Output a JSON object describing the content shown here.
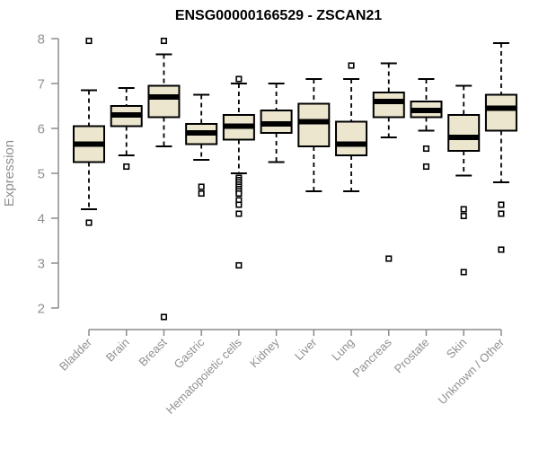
{
  "chart_data": {
    "type": "boxplot",
    "title": "ENSG00000166529 - ZSCAN21",
    "ylabel": "Expression",
    "xlabel": "",
    "ylim": [
      2,
      8
    ],
    "yticks": [
      2,
      3,
      4,
      5,
      6,
      7,
      8
    ],
    "grid": false,
    "legend": "none",
    "categories": [
      "Bladder",
      "Brain",
      "Breast",
      "Gastric",
      "Hematopoietic cells",
      "Kidney",
      "Liver",
      "Lung",
      "Pancreas",
      "Prostate",
      "Skin",
      "Unknown / Other"
    ],
    "boxes": [
      {
        "category": "Bladder",
        "low": 4.2,
        "q1": 5.25,
        "median": 5.65,
        "q3": 6.05,
        "high": 6.85,
        "outliers": [
          7.95,
          3.9
        ]
      },
      {
        "category": "Brain",
        "low": 5.4,
        "q1": 6.05,
        "median": 6.3,
        "q3": 6.5,
        "high": 6.9,
        "outliers": [
          5.15
        ]
      },
      {
        "category": "Breast",
        "low": 5.6,
        "q1": 6.25,
        "median": 6.7,
        "q3": 6.95,
        "high": 7.65,
        "outliers": [
          7.95,
          1.8
        ]
      },
      {
        "category": "Gastric",
        "low": 5.3,
        "q1": 5.65,
        "median": 5.9,
        "q3": 6.1,
        "high": 6.75,
        "outliers": [
          4.7,
          4.55
        ]
      },
      {
        "category": "Hematopoietic cells",
        "low": 5.0,
        "q1": 5.75,
        "median": 6.05,
        "q3": 6.3,
        "high": 7.0,
        "outliers": [
          7.1,
          4.9,
          4.85,
          4.8,
          4.75,
          4.7,
          4.65,
          4.6,
          4.55,
          4.4,
          4.3,
          4.1,
          2.95
        ]
      },
      {
        "category": "Kidney",
        "low": 5.25,
        "q1": 5.9,
        "median": 6.1,
        "q3": 6.4,
        "high": 7.0,
        "outliers": []
      },
      {
        "category": "Liver",
        "low": 4.6,
        "q1": 5.6,
        "median": 6.15,
        "q3": 6.55,
        "high": 7.1,
        "outliers": []
      },
      {
        "category": "Lung",
        "low": 4.6,
        "q1": 5.4,
        "median": 5.65,
        "q3": 6.15,
        "high": 7.1,
        "outliers": [
          7.4
        ]
      },
      {
        "category": "Pancreas",
        "low": 5.8,
        "q1": 6.25,
        "median": 6.6,
        "q3": 6.8,
        "high": 7.45,
        "outliers": [
          3.1
        ]
      },
      {
        "category": "Prostate",
        "low": 5.95,
        "q1": 6.25,
        "median": 6.4,
        "q3": 6.6,
        "high": 7.1,
        "outliers": [
          5.55,
          5.15
        ]
      },
      {
        "category": "Skin",
        "low": 4.95,
        "q1": 5.5,
        "median": 5.8,
        "q3": 6.3,
        "high": 6.95,
        "outliers": [
          4.2,
          4.05,
          2.8
        ]
      },
      {
        "category": "Unknown / Other",
        "low": 4.8,
        "q1": 5.95,
        "median": 6.45,
        "q3": 6.75,
        "high": 7.9,
        "outliers": [
          4.3,
          4.1,
          3.3
        ]
      }
    ],
    "colors": {
      "box_fill": "#ECE6CE",
      "box_stroke": "#000000",
      "median": "#000000",
      "whisker": "#000000",
      "outlier_fill": "#FFFFFF",
      "outlier_stroke": "#000000",
      "axis": "#8C8C8C",
      "tick_label": "#909090",
      "title": "#000000"
    }
  }
}
